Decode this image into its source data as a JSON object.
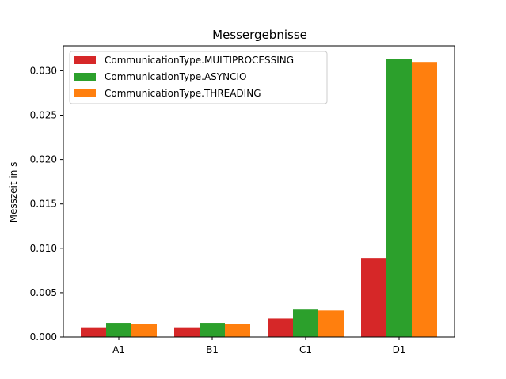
{
  "chart_data": {
    "type": "bar",
    "title": "Messergebnisse",
    "xlabel": "",
    "ylabel": "Messzeit in s",
    "categories": [
      "A1",
      "B1",
      "C1",
      "D1"
    ],
    "series": [
      {
        "name": "CommunicationType.MULTIPROCESSING",
        "color": "#d62728",
        "values": [
          0.0011,
          0.0011,
          0.0021,
          0.0089
        ]
      },
      {
        "name": "CommunicationType.ASYNCIO",
        "color": "#2ca02c",
        "values": [
          0.0016,
          0.0016,
          0.0031,
          0.0313
        ]
      },
      {
        "name": "CommunicationType.THREADING",
        "color": "#ff7f0e",
        "values": [
          0.0015,
          0.0015,
          0.003,
          0.031
        ]
      }
    ],
    "ylim": [
      0,
      0.0328
    ],
    "yticks": [
      0,
      0.005,
      0.01,
      0.015,
      0.02,
      0.025,
      0.03
    ],
    "ytick_labels": [
      "0.000",
      "0.005",
      "0.010",
      "0.015",
      "0.020",
      "0.025",
      "0.030"
    ],
    "legend_position": "top-left",
    "grid": false
  }
}
